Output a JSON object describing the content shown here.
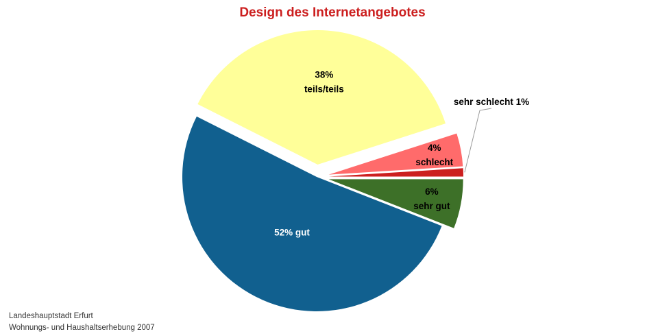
{
  "chart_data": {
    "type": "pie",
    "title": "Design des Internetangebotes",
    "slices": [
      {
        "label": "sehr gut",
        "value": 6,
        "display": [
          "6%",
          "sehr gut"
        ],
        "color": "#3d7028",
        "text_color": "#000000",
        "exploded": true
      },
      {
        "label": "gut",
        "value": 52,
        "display": [
          "52% gut"
        ],
        "color": "#11608f",
        "text_color": "#ffffff",
        "exploded": false
      },
      {
        "label": "teils/teils",
        "value": 38,
        "display": [
          "38%",
          "teils/teils"
        ],
        "color": "#ffff99",
        "text_color": "#000000",
        "exploded": true
      },
      {
        "label": "schlecht",
        "value": 4,
        "display": [
          "4%",
          "schlecht"
        ],
        "color": "#ff6b6b",
        "text_color": "#000000",
        "exploded": true
      },
      {
        "label": "sehr schlecht",
        "value": 1,
        "display": [
          "sehr schlecht 1%"
        ],
        "color": "#cc1f1f",
        "text_color": "#000000",
        "exploded": true,
        "callout": true
      }
    ]
  },
  "footer": {
    "line1": "Landeshauptstadt Erfurt",
    "line2": "Wohnungs- und Haushaltserhebung 2007"
  }
}
